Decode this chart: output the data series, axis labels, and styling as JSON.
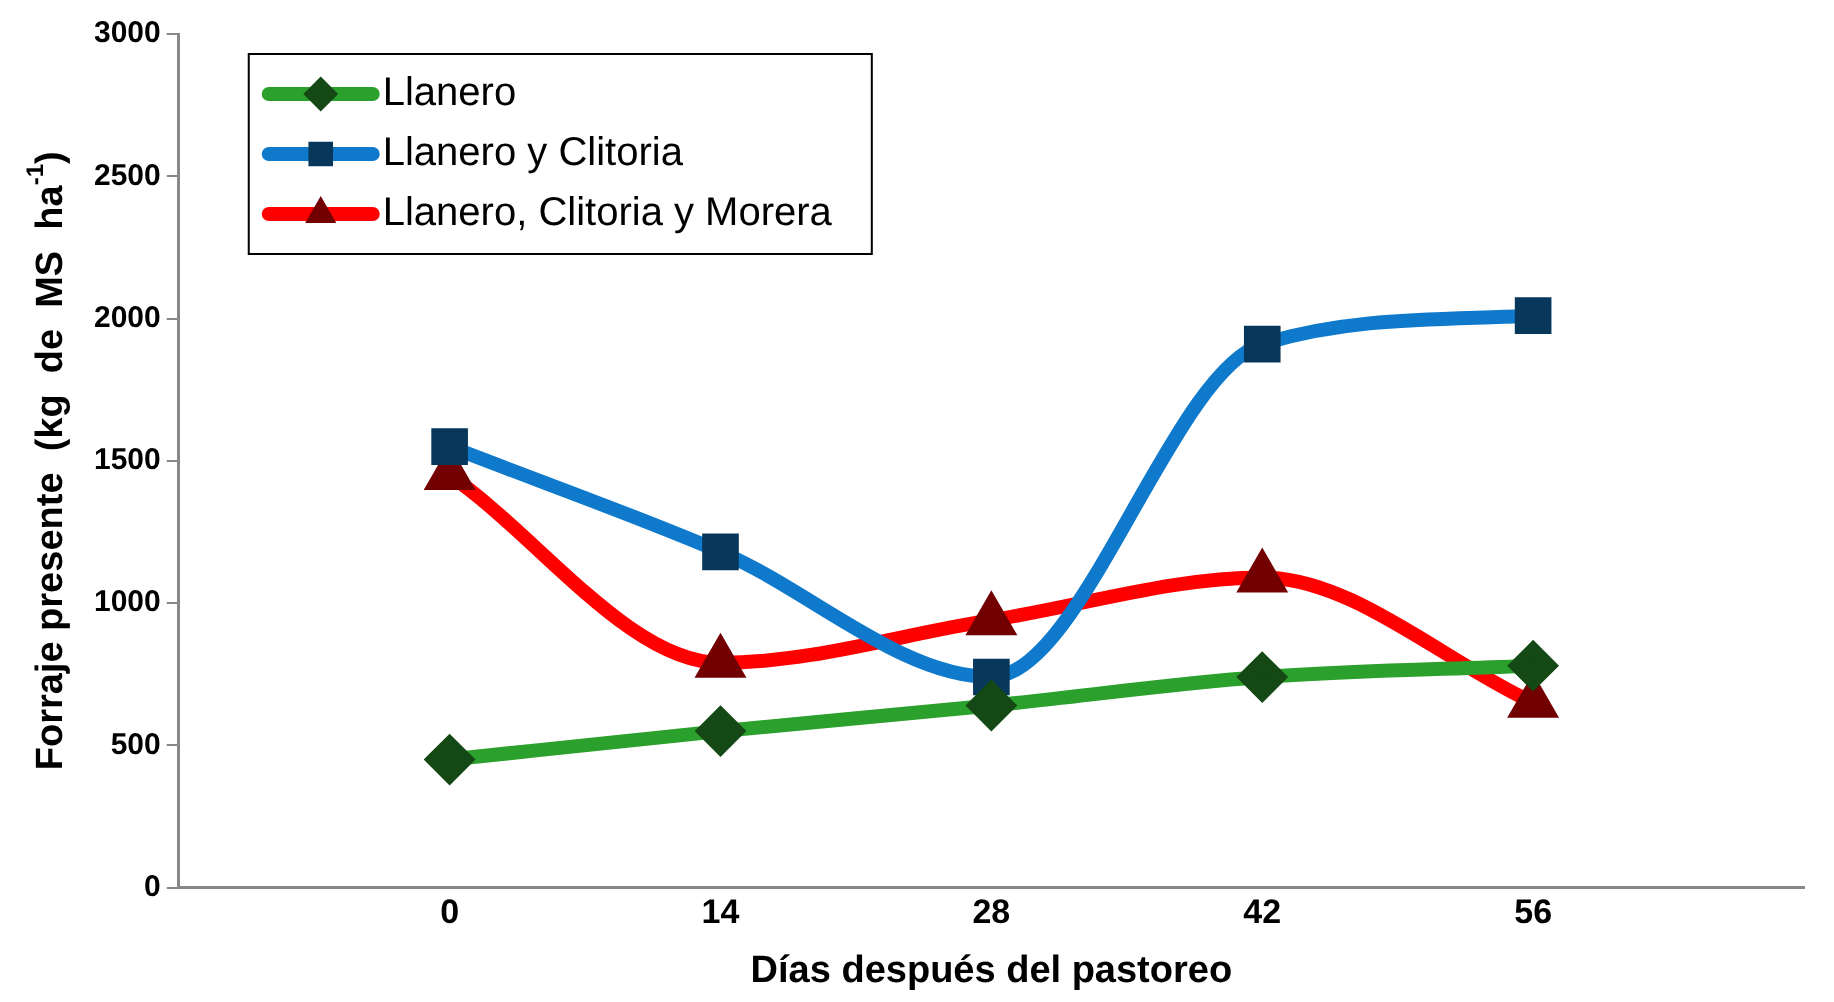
{
  "chart_data": {
    "type": "line",
    "xlabel": "Días después del pastoreo",
    "ylabel": "Forraje presente  (kg  de  MS  ha$^{-1}$)",
    "x": [
      0,
      14,
      28,
      42,
      56
    ],
    "xlim": [
      -14,
      70
    ],
    "xticks": [
      0,
      14,
      28,
      42,
      56
    ],
    "ylim": [
      0,
      3000
    ],
    "yticks": [
      0,
      500,
      1000,
      1500,
      2000,
      2500,
      3000
    ],
    "grid": false,
    "legend": "top left",
    "series": [
      {
        "name": "Llanero",
        "color": "#2ca02c",
        "marker": "diamond",
        "values": [
          450,
          550,
          640,
          740,
          780
        ]
      },
      {
        "name": "Llanero y Clitoria",
        "color": "#0f7acb",
        "marker": "square",
        "values": [
          1550,
          1180,
          740,
          1910,
          2010
        ]
      },
      {
        "name": "Llanero, Clitoria y Morera",
        "color": "#ff0000",
        "marker": "triangle",
        "values": [
          1450,
          790,
          940,
          1090,
          650
        ]
      }
    ]
  }
}
